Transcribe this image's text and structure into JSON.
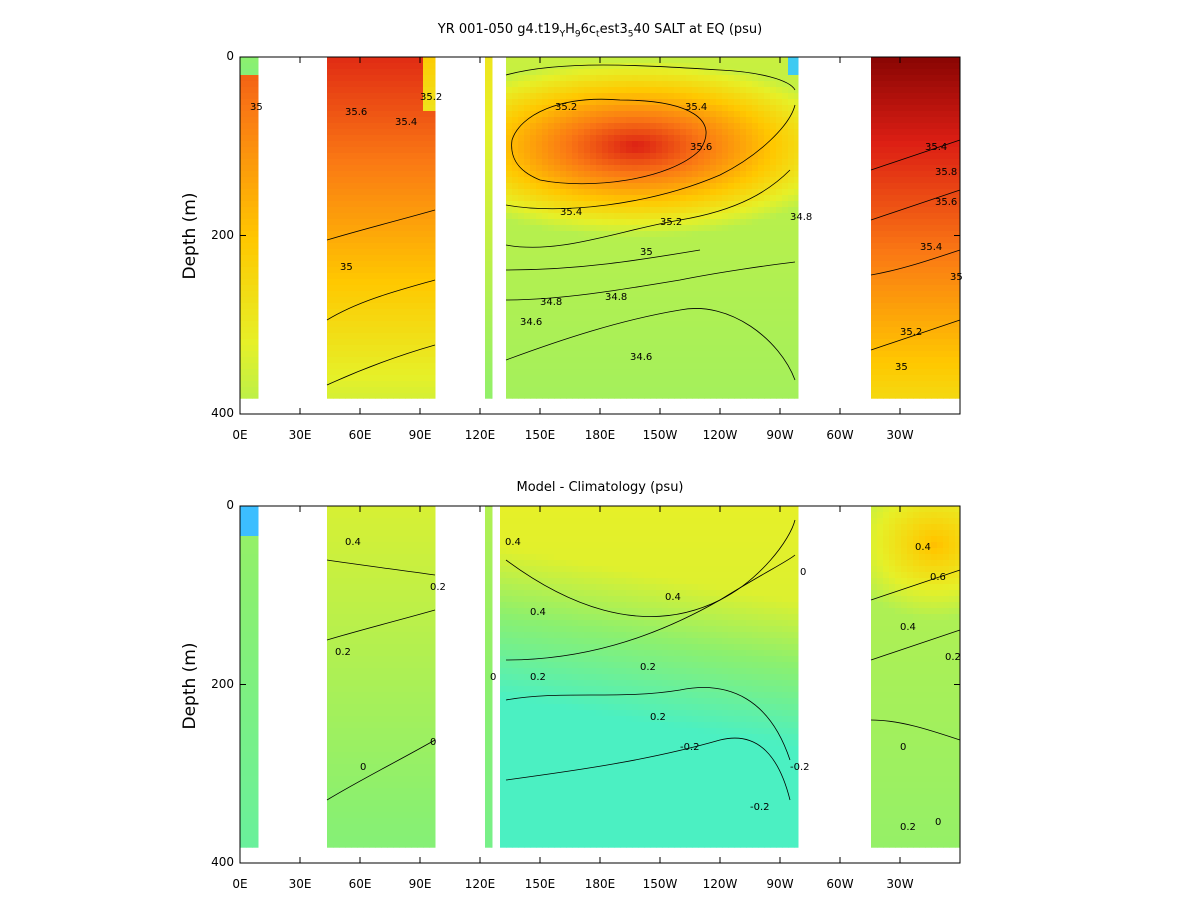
{
  "chart_data": [
    {
      "type": "heatmap",
      "title_parts": {
        "a": "YR 001-050 g4.t19",
        "s1": "Y",
        "b": "H",
        "s2": "9",
        "c": "6c",
        "s3": "t",
        "d": "est3",
        "s4": "5",
        "e": "40 SALT at EQ (psu)"
      },
      "ylabel": "Depth (m)",
      "x_ticks": [
        "0E",
        "30E",
        "60E",
        "90E",
        "120E",
        "150E",
        "180E",
        "150W",
        "120W",
        "90W",
        "60W",
        "30W"
      ],
      "y_ticks": [
        "0",
        "200",
        "400"
      ],
      "xlim": [
        0,
        360
      ],
      "ylim": [
        400,
        0
      ],
      "contour_labels": [
        "35",
        "35.6",
        "35.4",
        "35.2",
        "35",
        "34.8",
        "34.6",
        "35.2",
        "35.4",
        "35.6",
        "35.4",
        "35.2",
        "35",
        "34.8",
        "34.6",
        "34.8",
        "35",
        "35.2",
        "35.4",
        "35.6",
        "35.8",
        "35.4",
        "35"
      ],
      "contour_levels": [
        34.6,
        34.8,
        35.0,
        35.2,
        35.4,
        35.6,
        35.8
      ],
      "land_gaps_lon": [
        [
          8,
          43
        ],
        [
          97,
          118
        ],
        [
          128,
          131
        ],
        [
          263,
          287
        ]
      ]
    },
    {
      "type": "heatmap",
      "title": "Model - Climatology (psu)",
      "ylabel": "Depth (m)",
      "x_ticks": [
        "0E",
        "30E",
        "60E",
        "90E",
        "120E",
        "150E",
        "180E",
        "150W",
        "120W",
        "90W",
        "60W",
        "30W"
      ],
      "y_ticks": [
        "0",
        "200",
        "400"
      ],
      "xlim": [
        0,
        360
      ],
      "ylim": [
        400,
        0
      ],
      "contour_labels": [
        "0.4",
        "0.2",
        "0.2",
        "0",
        "0",
        "0.2",
        "0.4",
        "0.4",
        "0.4",
        "0.2",
        "0.2",
        "0",
        "-0.2",
        "-0.2",
        "-0.2",
        "0",
        "0.2",
        "0.4",
        "0.6",
        "0.4",
        "0.2",
        "0",
        "0"
      ],
      "contour_levels": [
        -0.2,
        0.0,
        0.2,
        0.4,
        0.6
      ]
    }
  ]
}
